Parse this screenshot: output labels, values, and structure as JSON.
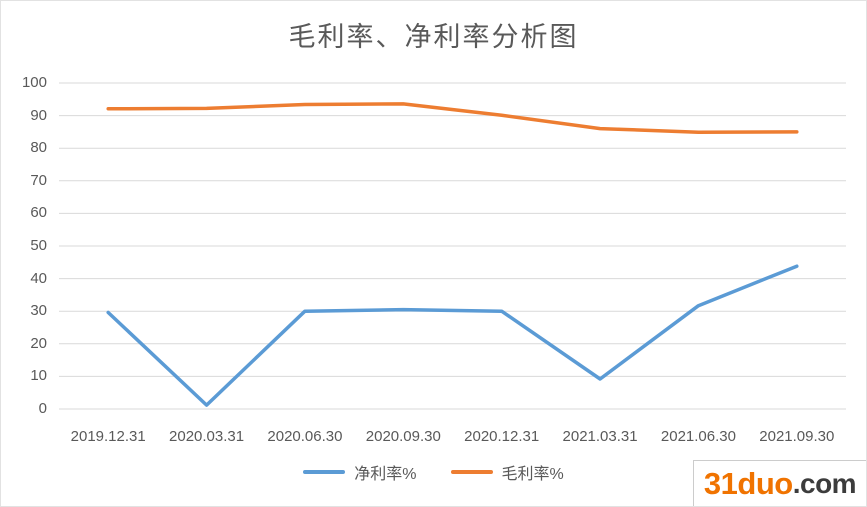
{
  "title": "毛利率、净利率分析图",
  "watermark": {
    "brand": "31duo",
    "suffix": ".com"
  },
  "colors": {
    "net_line": "#5B9BD5",
    "gross_line": "#ED7D31",
    "gridline": "#D9D9D9",
    "axis_text": "#595959",
    "title_text": "#595959",
    "logo_brand": "#F07300",
    "logo_suffix": "#3C3C3C",
    "background": "#FFFFFF"
  },
  "chart_data": {
    "type": "line",
    "title": "毛利率、净利率分析图",
    "categories": [
      "2019.12.31",
      "2020.03.31",
      "2020.06.30",
      "2020.09.30",
      "2020.12.31",
      "2021.03.31",
      "2021.06.30",
      "2021.09.30"
    ],
    "series": [
      {
        "name": "净利率%",
        "color": "#5B9BD5",
        "values": [
          29.6,
          1.2,
          30.0,
          30.5,
          30.0,
          9.2,
          31.7,
          43.8
        ]
      },
      {
        "name": "毛利率%",
        "color": "#ED7D31",
        "values": [
          92.1,
          92.2,
          93.4,
          93.6,
          90.1,
          86.0,
          84.9,
          85.0
        ]
      }
    ],
    "xlabel": "",
    "ylabel": "",
    "ylim": [
      0,
      100
    ],
    "ytick_step": 10,
    "ytick_labels": [
      "0",
      "10",
      "20",
      "30",
      "40",
      "50",
      "60",
      "70",
      "80",
      "90",
      "100"
    ],
    "grid": true,
    "legend_position": "bottom"
  }
}
